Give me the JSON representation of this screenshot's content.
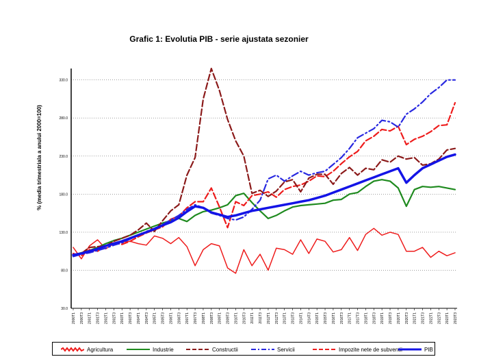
{
  "title": "Grafic 1: Evolutia PIB - serie ajustata sezonier",
  "chart_data": {
    "type": "line",
    "title": "Grafic 1: Evolutia PIB - serie ajustata sezonier",
    "ylabel": "% (media trimestriala a anului 2000=100)",
    "xlabel": "",
    "ylim": [
      30,
      345
    ],
    "y_ticks": [
      30,
      80,
      130,
      180,
      230,
      280,
      330
    ],
    "y_tick_labels": [
      "30.0",
      "80.0",
      "130.0",
      "180.0",
      "230.0",
      "280.0",
      "330.0"
    ],
    "x_tick_labels": [
      "2000T1",
      "2000T3",
      "2001T1",
      "2001T3",
      "2002T1",
      "2002T3",
      "2003T1",
      "2003T3",
      "2004T1",
      "2004T3",
      "2005T1",
      "2005T3",
      "2006T1",
      "2006T3",
      "2007T1",
      "2007T3",
      "2008T1",
      "2008T3",
      "2009T1",
      "2009T3",
      "2010T1",
      "2010T3",
      "2011T1",
      "2011T3",
      "2012T1",
      "2012T3",
      "2013T1",
      "2013T3",
      "2014T1",
      "2014T3",
      "2015T1",
      "2015T3",
      "2016T1",
      "2016T3",
      "2017T1",
      "2017T3",
      "2018T1",
      "2018T3",
      "2019T1",
      "2019T3",
      "2020T1",
      "2020T3",
      "2021T1",
      "2021T3",
      "2022T1",
      "2022T3",
      "2023T1",
      "2023T3"
    ],
    "grid": "horizontal dotted",
    "legend_position": "bottom",
    "series": [
      {
        "name": "Agricultura",
        "color": "#ee1c1c",
        "style": "zigzag",
        "x": [
          0,
          1,
          2,
          3,
          4,
          5,
          6,
          7,
          8,
          9,
          10,
          11,
          12,
          13,
          14,
          15,
          16,
          17,
          18,
          19,
          20,
          21,
          22,
          23,
          24,
          25,
          26,
          27,
          28,
          29,
          30,
          31,
          32,
          33,
          34,
          35,
          36,
          37,
          38,
          39,
          40,
          41,
          42,
          43,
          44,
          45,
          46,
          47
        ],
        "values": [
          110,
          95,
          112,
          120,
          108,
          115,
          117,
          118,
          115,
          113,
          125,
          122,
          115,
          123,
          111,
          86,
          107,
          115,
          112,
          83,
          76,
          107,
          86,
          101,
          80,
          109,
          107,
          101,
          120,
          102,
          121,
          118,
          104,
          107,
          123,
          106,
          127,
          135,
          126,
          130,
          127,
          105,
          105,
          110,
          97,
          105,
          99,
          103
        ]
      },
      {
        "name": "Industrie",
        "color": "#1e8a1e",
        "style": "solid",
        "x": [
          0,
          1,
          2,
          3,
          4,
          5,
          6,
          7,
          8,
          9,
          10,
          11,
          12,
          13,
          14,
          15,
          16,
          17,
          18,
          19,
          20,
          21,
          22,
          23,
          24,
          25,
          26,
          27,
          28,
          29,
          30,
          31,
          32,
          33,
          34,
          35,
          36,
          37,
          38,
          39,
          40,
          41,
          42,
          43,
          44,
          45,
          46,
          47
        ],
        "values": [
          100,
          103,
          106,
          110,
          115,
          119,
          122,
          126,
          130,
          134,
          138,
          142,
          145,
          148,
          144,
          152,
          157,
          159,
          162,
          166,
          178,
          181,
          169,
          158,
          148,
          152,
          158,
          163,
          165,
          166,
          167,
          168,
          172,
          173,
          180,
          182,
          190,
          197,
          199,
          197,
          188,
          164,
          186,
          190,
          189,
          190,
          188,
          186
        ]
      },
      {
        "name": "Constructii",
        "color": "#8b1a1a",
        "style": "dashed",
        "x": [
          0,
          1,
          2,
          3,
          4,
          5,
          6,
          7,
          8,
          9,
          10,
          11,
          12,
          13,
          14,
          15,
          16,
          17,
          18,
          19,
          20,
          21,
          22,
          23,
          24,
          25,
          26,
          27,
          28,
          29,
          30,
          31,
          32,
          33,
          34,
          35,
          36,
          37,
          38,
          39,
          40,
          41,
          42,
          43,
          44,
          45,
          46,
          47
        ],
        "values": [
          100,
          102,
          110,
          111,
          112,
          118,
          122,
          126,
          133,
          142,
          131,
          145,
          158,
          166,
          205,
          228,
          305,
          345,
          316,
          278,
          250,
          230,
          181,
          185,
          177,
          184,
          196,
          199,
          183,
          201,
          206,
          206,
          193,
          207,
          215,
          205,
          214,
          212,
          225,
          222,
          230,
          226,
          228,
          218,
          220,
          226,
          238,
          240
        ]
      },
      {
        "name": "Servicii",
        "color": "#2828e0",
        "style": "dash-dot",
        "x": [
          0,
          1,
          2,
          3,
          4,
          5,
          6,
          7,
          8,
          9,
          10,
          11,
          12,
          13,
          14,
          15,
          16,
          17,
          18,
          19,
          20,
          21,
          22,
          23,
          24,
          25,
          26,
          27,
          28,
          29,
          30,
          31,
          32,
          33,
          34,
          35,
          36,
          37,
          38,
          39,
          40,
          41,
          42,
          43,
          44,
          45,
          46,
          47
        ],
        "values": [
          98,
          101,
          103,
          106,
          109,
          113,
          116,
          121,
          126,
          131,
          135,
          140,
          146,
          152,
          160,
          166,
          162,
          155,
          152,
          148,
          146,
          150,
          160,
          172,
          200,
          205,
          197,
          204,
          210,
          205,
          208,
          210,
          219,
          228,
          240,
          254,
          260,
          266,
          277,
          275,
          268,
          285,
          292,
          301,
          312,
          320,
          330,
          330
        ]
      },
      {
        "name": "Impozite nete de subventii",
        "color": "#ee1c1c",
        "style": "dashed",
        "x": [
          0,
          1,
          2,
          3,
          4,
          5,
          6,
          7,
          8,
          9,
          10,
          11,
          12,
          13,
          14,
          15,
          16,
          17,
          18,
          19,
          20,
          21,
          22,
          23,
          24,
          25,
          26,
          27,
          28,
          29,
          30,
          31,
          32,
          33,
          34,
          35,
          36,
          37,
          38,
          39,
          40,
          41,
          42,
          43,
          44,
          45,
          46,
          47
        ],
        "values": [
          102,
          99,
          107,
          105,
          112,
          116,
          114,
          118,
          124,
          129,
          133,
          137,
          147,
          151,
          162,
          170,
          170,
          188,
          163,
          136,
          170,
          165,
          178,
          180,
          183,
          176,
          186,
          190,
          192,
          197,
          204,
          203,
          210,
          220,
          229,
          236,
          250,
          256,
          265,
          263,
          269,
          245,
          252,
          256,
          262,
          270,
          271,
          300
        ]
      },
      {
        "name": "PIB",
        "color": "#1414e6",
        "style": "solid-thick",
        "x": [
          0,
          1,
          2,
          3,
          4,
          5,
          6,
          7,
          8,
          9,
          10,
          11,
          12,
          13,
          14,
          15,
          16,
          17,
          18,
          19,
          20,
          21,
          22,
          23,
          24,
          25,
          26,
          27,
          28,
          29,
          30,
          31,
          32,
          33,
          34,
          35,
          36,
          37,
          38,
          39,
          40,
          41,
          42,
          43,
          44,
          45,
          46,
          47
        ],
        "values": [
          100,
          102,
          105,
          108,
          112,
          115,
          118,
          122,
          126,
          130,
          134,
          139,
          143,
          149,
          157,
          164,
          162,
          156,
          153,
          150,
          152,
          155,
          158,
          160,
          162,
          164,
          166,
          168,
          170,
          172,
          175,
          178,
          182,
          186,
          190,
          194,
          198,
          202,
          206,
          210,
          214,
          195,
          205,
          214,
          219,
          224,
          229,
          232
        ]
      }
    ]
  }
}
